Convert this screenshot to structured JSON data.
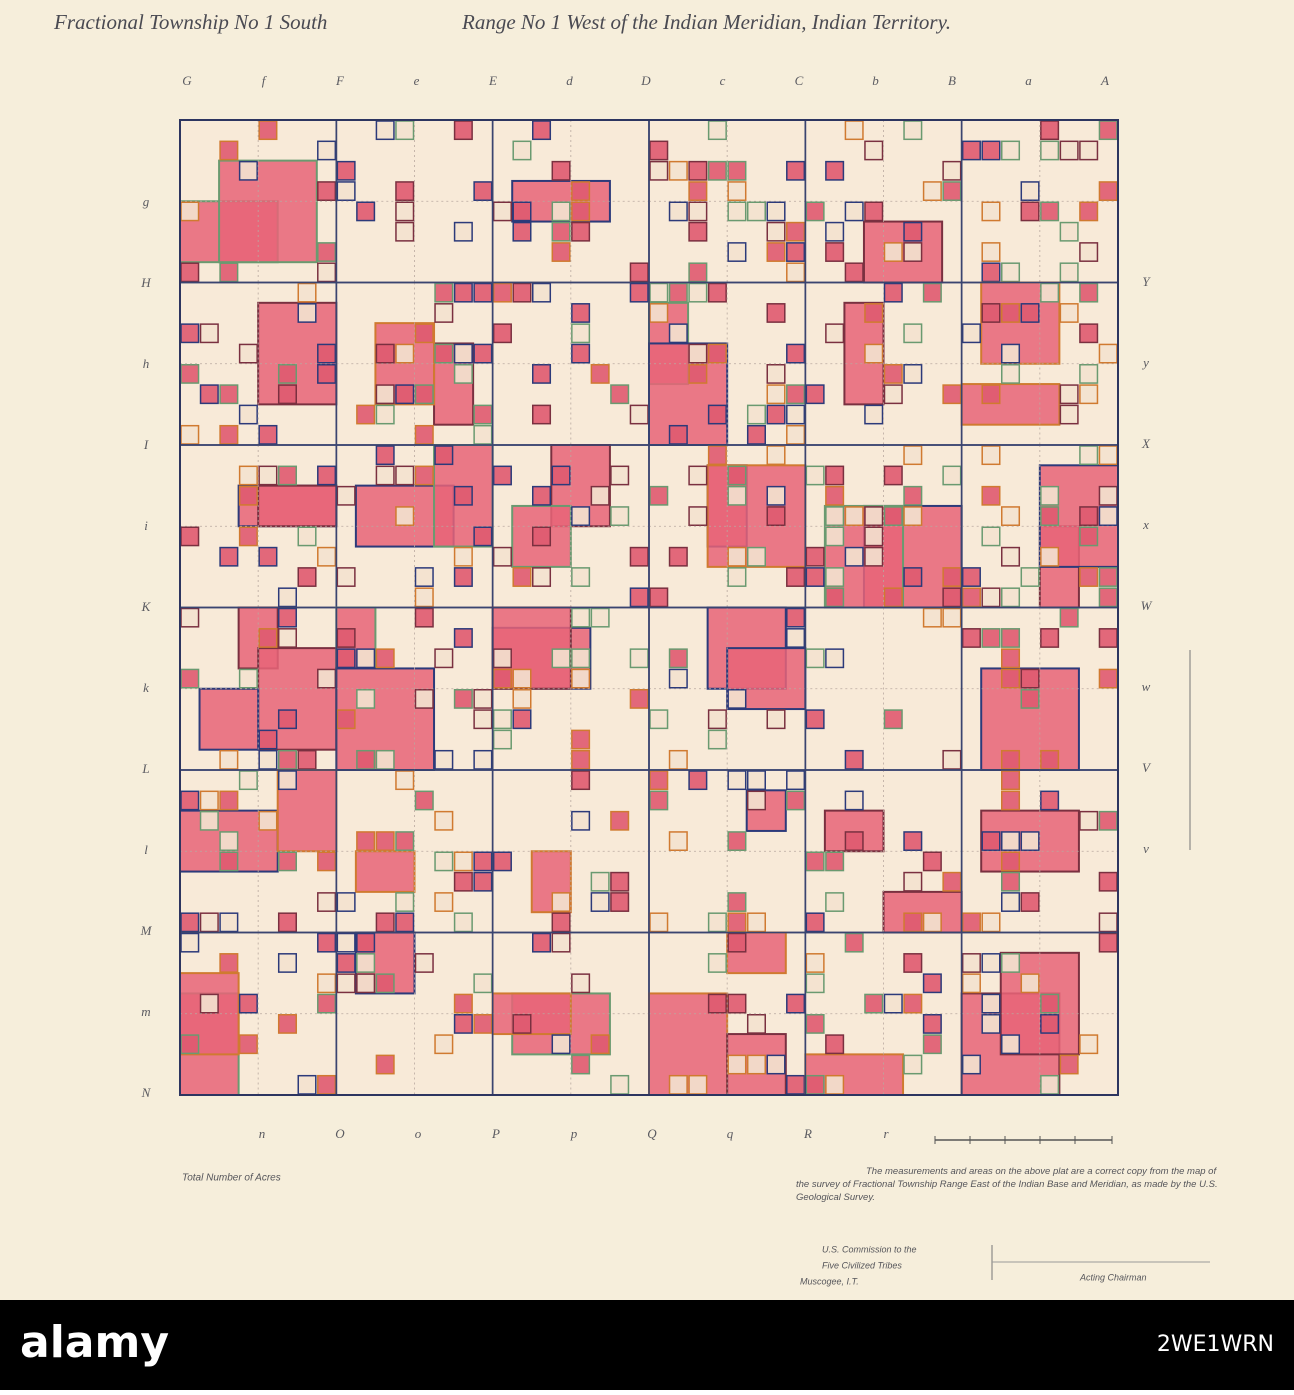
{
  "header": {
    "title_left": "Fractional Township No 1 South",
    "title_right": "Range No 1 West of the Indian Meridian, Indian Territory."
  },
  "map": {
    "top_letters": [
      "G",
      "f",
      "F",
      "e",
      "E",
      "d",
      "D",
      "c",
      "C",
      "b",
      "B",
      "a",
      "A"
    ],
    "bottom_letters": [
      "n",
      "O",
      "o",
      "P",
      "p",
      "Q",
      "q",
      "R",
      "r"
    ],
    "left_letters": [
      "g",
      "H",
      "h",
      "I",
      "i",
      "K",
      "k",
      "L",
      "l",
      "M",
      "m",
      "N"
    ],
    "right_letters": [
      "Y",
      "y",
      "X",
      "x",
      "W",
      "w",
      "V",
      "v"
    ]
  },
  "footer": {
    "acres_label": "Total Number of Acres",
    "certification": "The measurements and areas on the above plat are a correct copy from the map of the survey of Fractional Township        Range East of the Indian Base and Meridian, as made by the U.S. Geological Survey.",
    "commission": [
      "U.S. Commission to the",
      "Five Civilized Tribes",
      "Muscogee, I.T."
    ],
    "signature": "Acting Chairman"
  },
  "watermark": {
    "brand": "alamy",
    "image_id": "2WE1WRN"
  }
}
